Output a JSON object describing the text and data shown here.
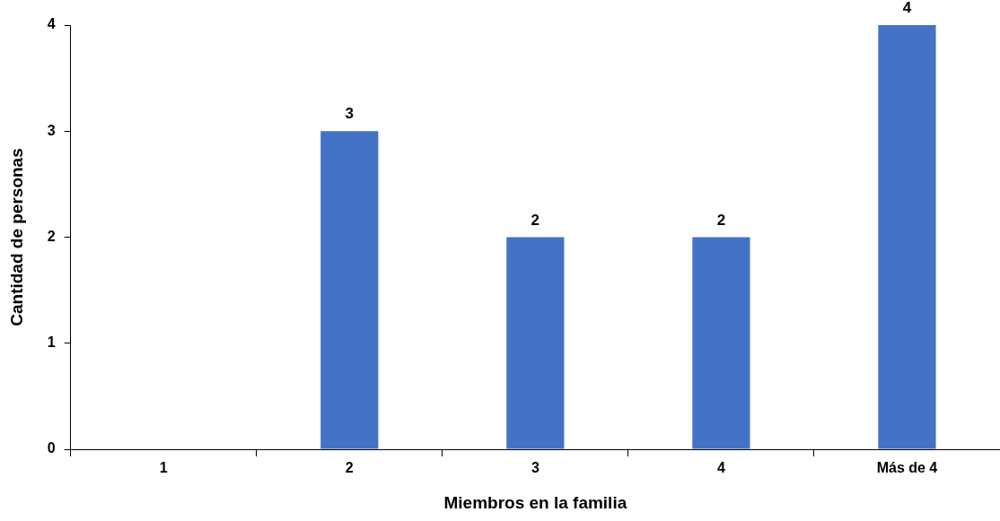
{
  "chart_data": {
    "type": "bar",
    "xlabel": "Miembros en la familia",
    "ylabel": "Cantidad de personas",
    "categories": [
      "1",
      "2",
      "3",
      "4",
      "Más de 4"
    ],
    "values": [
      0,
      3,
      2,
      2,
      4
    ],
    "color": "#4472c4",
    "value_labels": [
      null,
      "3",
      "2",
      "2",
      "4"
    ],
    "ylim": [
      0,
      4
    ],
    "yticks": [
      0,
      1,
      2,
      3,
      4
    ],
    "grid": false,
    "legend": false
  }
}
